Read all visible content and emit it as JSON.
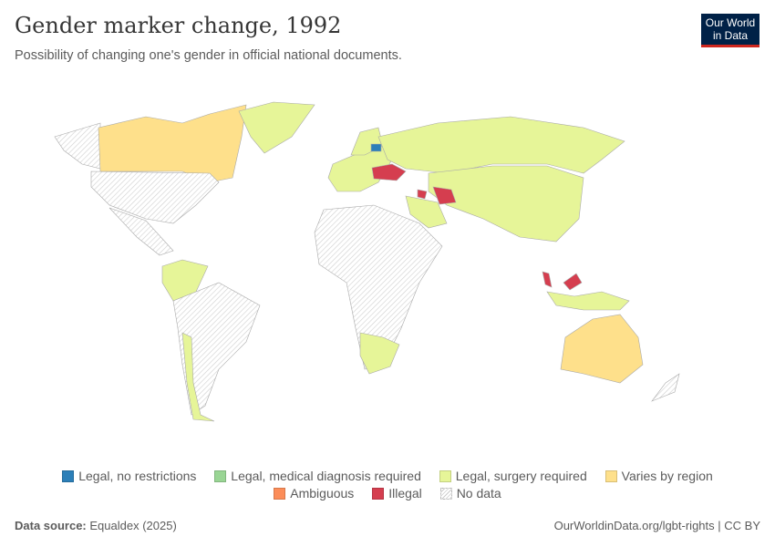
{
  "header": {
    "title": "Gender marker change, 1992",
    "subtitle": "Possibility of changing one's gender in official national documents.",
    "logo": {
      "line1": "Our World",
      "line2": "in Data",
      "bg": "#002147",
      "accent": "#ce261e"
    }
  },
  "legend": {
    "row1": [
      {
        "label": "Legal, no restrictions",
        "color": "#2c7fb8"
      },
      {
        "label": "Legal, medical diagnosis required",
        "color": "#99d594"
      },
      {
        "label": "Legal, surgery required",
        "color": "#e6f598"
      },
      {
        "label": "Varies by region",
        "color": "#fee08b"
      }
    ],
    "row2": [
      {
        "label": "Ambiguous",
        "color": "#fc8d59"
      },
      {
        "label": "Illegal",
        "color": "#d53e4f"
      },
      {
        "label": "No data",
        "color": "hatched"
      }
    ]
  },
  "footer": {
    "source_label": "Data source:",
    "source_value": "Equaldex (2025)",
    "link": "OurWorldinData.org/lgbt-rights",
    "license": "CC BY"
  }
}
